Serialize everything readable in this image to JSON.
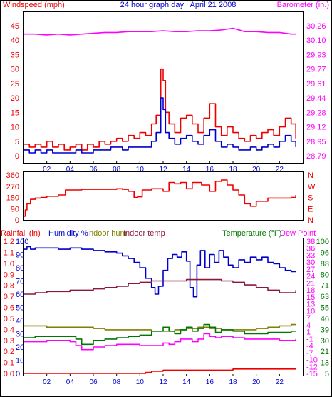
{
  "colors": {
    "frame": "#000000",
    "windspeed": "#ee0000",
    "wind_gust": "#ee0000",
    "wind_avg": "#0000cc",
    "barometer": "#ff00ff",
    "direction": "#ee0000",
    "humidity": "#0000cc",
    "indoor_hum": "#808000",
    "indoor_temp": "#8b1a3a",
    "temperature": "#007700",
    "dew_point": "#ff00ff",
    "rainfall": "#ee0000",
    "panel_bg": "#ffffff",
    "tick_text": "#0000cc"
  },
  "header": {
    "left_title": "Windspeed (mph)",
    "center_title": "24 hour graph day : April 21 2008",
    "right_title": "Barometer (in.)"
  },
  "legend_bottom": {
    "rainfall": "Rainfall (in)",
    "humidity": "Humidity %",
    "indoor_hum": "Indoor hum",
    "indoor_temp": "Indoor temp",
    "temperature": "Temperature (°F)",
    "dew_point": "Dew Point"
  },
  "chart_data": [
    {
      "type": "line",
      "title": "24 hour graph day : April 21 2008",
      "x_ticks": [
        "02",
        "04",
        "06",
        "08",
        "10",
        "12",
        "14",
        "16",
        "18",
        "20",
        "22"
      ],
      "x_range": [
        0,
        24
      ],
      "y_left": {
        "label": "Windspeed (mph)",
        "ticks": [
          "45",
          "40",
          "35",
          "30",
          "25",
          "20",
          "15",
          "10",
          "5",
          "0"
        ],
        "range": [
          0,
          45
        ]
      },
      "y_right": {
        "label": "Barometer (in.)",
        "ticks": [
          "30.26",
          "30.10",
          "29.93",
          "29.77",
          "29.61",
          "29.44",
          "29.28",
          "29.12",
          "28.95",
          "28.79"
        ],
        "range": [
          28.79,
          30.34
        ]
      },
      "series": [
        {
          "key": "wind_gust",
          "axis": "left",
          "x": [
            0.0,
            0.5,
            1.0,
            1.5,
            2.0,
            2.5,
            3.0,
            3.5,
            4.0,
            4.5,
            5.0,
            5.5,
            6.0,
            6.5,
            7.0,
            7.5,
            8.0,
            8.5,
            9.0,
            9.5,
            10.0,
            10.5,
            11.0,
            11.4,
            11.8,
            12.0,
            12.2,
            12.5,
            13.0,
            13.5,
            14.0,
            14.5,
            15.0,
            15.5,
            16.0,
            16.5,
            17.0,
            17.5,
            18.0,
            18.5,
            19.0,
            19.5,
            20.0,
            20.5,
            21.0,
            21.5,
            22.0,
            22.5,
            23.0,
            23.4
          ],
          "values": [
            4,
            3,
            4,
            3,
            5,
            3,
            4,
            2,
            3,
            4,
            2,
            4,
            3,
            5,
            4,
            5,
            6,
            5,
            7,
            6,
            8,
            7,
            11,
            14,
            30,
            26,
            15,
            11,
            8,
            13,
            14,
            11,
            8,
            13,
            18,
            10,
            7,
            10,
            8,
            6,
            5,
            7,
            6,
            8,
            9,
            7,
            10,
            13,
            11,
            6
          ]
        },
        {
          "key": "wind_avg",
          "axis": "left",
          "x": [
            0.0,
            0.5,
            1.0,
            1.5,
            2.0,
            2.5,
            3.0,
            3.5,
            4.0,
            4.5,
            5.0,
            5.5,
            6.0,
            6.5,
            7.0,
            7.5,
            8.0,
            8.5,
            9.0,
            9.5,
            10.0,
            10.5,
            11.0,
            11.4,
            11.8,
            12.0,
            12.2,
            12.5,
            13.0,
            13.5,
            14.0,
            14.5,
            15.0,
            15.5,
            16.0,
            16.5,
            17.0,
            17.5,
            18.0,
            18.5,
            19.0,
            19.5,
            20.0,
            20.5,
            21.0,
            21.5,
            22.0,
            22.5,
            23.0,
            23.4
          ],
          "values": [
            2,
            1,
            2,
            1,
            2,
            1,
            1,
            1,
            1,
            2,
            1,
            1,
            2,
            2,
            2,
            3,
            3,
            2,
            3,
            3,
            3,
            3,
            5,
            8,
            20,
            16,
            8,
            6,
            4,
            6,
            7,
            5,
            4,
            7,
            9,
            5,
            3,
            4,
            3,
            2,
            2,
            3,
            2,
            3,
            4,
            3,
            5,
            7,
            5,
            3
          ]
        },
        {
          "key": "barometer",
          "axis": "right",
          "x": [
            0,
            1,
            2,
            3,
            4,
            5,
            6,
            7,
            8,
            9,
            10,
            11,
            12,
            13,
            14,
            15,
            16,
            17,
            18,
            19,
            20,
            21,
            22,
            23,
            23.4
          ],
          "values": [
            30.24,
            30.24,
            30.23,
            30.24,
            30.23,
            30.24,
            30.25,
            30.26,
            30.26,
            30.27,
            30.27,
            30.27,
            30.28,
            30.27,
            30.27,
            30.28,
            30.28,
            30.29,
            30.31,
            30.27,
            30.27,
            30.26,
            30.26,
            30.24,
            30.24
          ]
        }
      ]
    },
    {
      "type": "line",
      "title": "",
      "x_range": [
        0,
        24
      ],
      "y_left": {
        "label": "",
        "ticks": [
          "360",
          "270",
          "180",
          "90",
          "0"
        ],
        "range": [
          0,
          360
        ]
      },
      "y_right": {
        "label": "",
        "ticks": [
          "N",
          "W",
          "S",
          "E",
          "N"
        ]
      },
      "series": [
        {
          "key": "direction",
          "axis": "left",
          "x": [
            0.0,
            0.15,
            0.3,
            0.6,
            1.0,
            1.5,
            2.0,
            3.0,
            3.6,
            4.0,
            5.0,
            6.0,
            7.0,
            8.0,
            8.5,
            9.0,
            9.5,
            9.8,
            10.2,
            11.0,
            12.0,
            12.5,
            13.0,
            13.5,
            14.0,
            14.5,
            15.0,
            15.3,
            16.0,
            16.5,
            17.0,
            17.5,
            18.0,
            18.5,
            19.0,
            19.5,
            20.0,
            21.0,
            22.0,
            23.0,
            23.4
          ],
          "values": [
            30,
            80,
            130,
            165,
            175,
            180,
            190,
            200,
            240,
            240,
            245,
            245,
            245,
            250,
            245,
            230,
            180,
            185,
            240,
            250,
            230,
            300,
            290,
            300,
            250,
            300,
            300,
            280,
            230,
            310,
            320,
            280,
            240,
            200,
            130,
            110,
            150,
            175,
            175,
            180,
            200
          ]
        }
      ]
    },
    {
      "type": "line",
      "title": "",
      "x_ticks": [
        "02",
        "04",
        "06",
        "08",
        "10",
        "12",
        "14",
        "16",
        "18",
        "20",
        "22"
      ],
      "x_range": [
        0,
        24
      ],
      "y_left_rain": {
        "label": "Rainfall (in)",
        "ticks": [
          "1.2",
          "1.1",
          "1.0",
          "0.9",
          "0.8",
          "0.7",
          "0.6",
          "0.5",
          "0.4",
          "0.3",
          "0.2",
          "0.1",
          "0.0"
        ],
        "range": [
          0,
          1.2
        ]
      },
      "y_left_hum": {
        "label": "Humidity %",
        "ticks": [
          "100",
          "90",
          "80",
          "70",
          "60",
          "50",
          "40",
          "30",
          "20",
          "10",
          "0"
        ],
        "range": [
          0,
          100
        ]
      },
      "y_right_c": {
        "ticks": [
          "38",
          "36",
          "33",
          "30",
          "27",
          "24",
          "21",
          "18",
          "15",
          "13",
          "10",
          "7",
          "4",
          "1",
          "-1",
          "-4",
          "-7",
          "-10",
          "-12",
          "-15"
        ],
        "label": ""
      },
      "y_right_f": {
        "label": "Temperature (°F)",
        "ticks": [
          "100",
          "96",
          "88",
          "80",
          "71",
          "63",
          "55",
          "46",
          "39",
          "30",
          "21",
          "13",
          "5"
        ],
        "range": [
          5,
          100
        ]
      },
      "series": [
        {
          "key": "humidity",
          "axis": "humidity",
          "x": [
            0.0,
            0.3,
            0.6,
            1.0,
            2.0,
            3.0,
            4.0,
            5.0,
            6.0,
            7.0,
            8.0,
            8.5,
            9.0,
            9.5,
            10.0,
            10.5,
            11.0,
            11.3,
            11.6,
            12.0,
            12.4,
            12.8,
            13.2,
            13.6,
            14.0,
            14.3,
            14.6,
            14.9,
            15.2,
            15.6,
            16.0,
            16.4,
            16.8,
            17.2,
            17.6,
            18.0,
            18.5,
            19.0,
            19.5,
            20.0,
            20.5,
            21.0,
            21.5,
            22.0,
            22.5,
            23.0,
            23.4
          ],
          "values": [
            94,
            96,
            94,
            95,
            95,
            94,
            95,
            94,
            93,
            92,
            91,
            89,
            87,
            84,
            80,
            72,
            65,
            60,
            66,
            78,
            87,
            90,
            88,
            92,
            85,
            65,
            58,
            82,
            93,
            80,
            90,
            84,
            93,
            88,
            82,
            80,
            86,
            84,
            88,
            86,
            88,
            84,
            83,
            80,
            78,
            77,
            77
          ]
        },
        {
          "key": "indoor_hum",
          "axis": "humidity",
          "x": [
            0,
            1,
            2,
            3,
            4,
            5,
            6,
            7,
            8,
            9,
            10,
            11,
            12,
            13,
            14,
            15,
            16,
            17,
            18,
            19,
            20,
            21,
            22,
            23,
            23.4
          ],
          "values": [
            36,
            36,
            35,
            35,
            35,
            35,
            34,
            33,
            33,
            33,
            33,
            32,
            32,
            33,
            34,
            35,
            34,
            33,
            33,
            33,
            34,
            35,
            36,
            37,
            37
          ]
        },
        {
          "key": "indoor_temp",
          "axis": "humidity",
          "x": [
            0,
            1,
            2,
            3,
            4,
            5,
            6,
            7,
            8,
            9,
            10,
            11,
            12,
            13,
            14,
            15,
            16,
            17,
            18,
            19,
            20,
            21,
            22,
            23,
            23.4
          ],
          "values": [
            60,
            61,
            62,
            62,
            63,
            63,
            64,
            65,
            66,
            68,
            69,
            70,
            70,
            70,
            71,
            71,
            71,
            70,
            69,
            67,
            65,
            63,
            61,
            61,
            63
          ]
        },
        {
          "key": "temperature",
          "axis": "humidity",
          "x": [
            0,
            1,
            2,
            3,
            4,
            4.5,
            5,
            6,
            7,
            8,
            9,
            10,
            11,
            12,
            12.5,
            13,
            13.5,
            14,
            14.5,
            15,
            15.5,
            16,
            16.5,
            17,
            18,
            19,
            20,
            21,
            22,
            23,
            23.4
          ],
          "values": [
            27,
            28,
            28,
            28,
            28,
            26,
            22,
            25,
            26,
            27,
            28,
            29,
            32,
            35,
            32,
            30,
            33,
            35,
            32,
            34,
            37,
            35,
            31,
            33,
            32,
            30,
            30,
            31,
            31,
            32,
            32
          ]
        },
        {
          "key": "dew_point",
          "axis": "humidity",
          "x": [
            0,
            1,
            2,
            3,
            4,
            4.5,
            5,
            6,
            7,
            8,
            9,
            10,
            11,
            12,
            12.5,
            13,
            13.5,
            14,
            14.5,
            15,
            15.5,
            16,
            16.5,
            17,
            18,
            19,
            20,
            21,
            22,
            23,
            23.4
          ],
          "values": [
            24,
            24,
            25,
            25,
            24,
            21,
            18,
            20,
            21,
            22,
            22,
            21,
            21,
            23,
            22,
            24,
            26,
            26,
            24,
            26,
            30,
            28,
            27,
            28,
            27,
            26,
            26,
            26,
            25,
            25,
            26
          ]
        },
        {
          "key": "rainfall",
          "axis": "rain",
          "x": [
            0,
            2,
            4,
            6,
            8,
            10,
            10.5,
            11.0,
            11.5,
            12.0,
            14.0,
            16.0,
            18.0,
            20.0,
            22.0,
            23.4
          ],
          "values": [
            0.0,
            0.0,
            0.0,
            0.0,
            0.0,
            0.0,
            0.01,
            0.02,
            0.02,
            0.03,
            0.03,
            0.03,
            0.04,
            0.04,
            0.04,
            0.05
          ]
        }
      ]
    }
  ]
}
